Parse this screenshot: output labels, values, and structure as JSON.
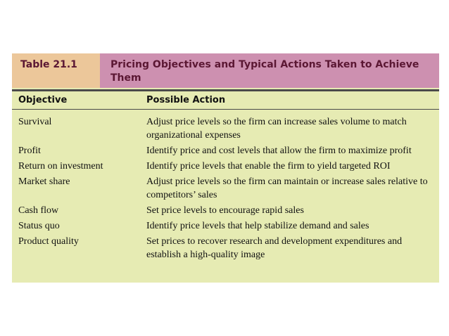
{
  "table": {
    "number": "Table 21.1",
    "title": "Pricing Objectives and Typical Actions Taken to Achieve Them",
    "columns": {
      "objective": "Objective",
      "action": "Possible Action"
    },
    "rows": [
      {
        "objective": "Survival",
        "action": "Adjust price levels so the firm can increase sales volume to match organizational expenses"
      },
      {
        "objective": "Profit",
        "action": "Identify price and cost levels that allow the firm to maximize profit"
      },
      {
        "objective": "Return on investment",
        "action": "Identify price levels that enable the firm to yield targeted ROI"
      },
      {
        "objective": "Market share",
        "action": "Adjust price levels so the firm can maintain or increase sales relative to competitors’ sales"
      },
      {
        "objective": "Cash flow",
        "action": "Set price levels to encourage rapid sales"
      },
      {
        "objective": "Status quo",
        "action": "Identify price levels that help stabilize demand and sales"
      },
      {
        "objective": "Product quality",
        "action": "Set prices to recover research and development expenditures and establish a high-quality image"
      }
    ]
  },
  "colors": {
    "table_background": "#e6ebb3",
    "title_band": "#cd90b0",
    "label_box": "#ecc79a",
    "title_text": "#5b1733"
  }
}
